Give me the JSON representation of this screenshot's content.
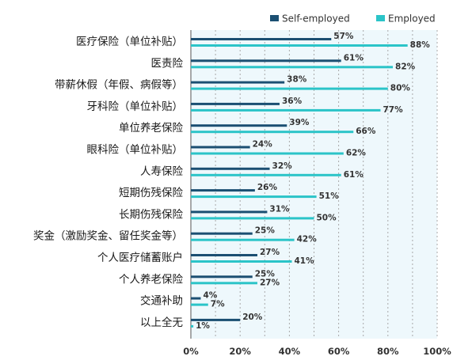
{
  "chart_data": {
    "type": "bar",
    "orientation": "horizontal",
    "categories": [
      "医疗保险（单位补贴）",
      "医责险",
      "带薪休假（年假、病假等）",
      "牙科险（单位补贴）",
      "单位养老保险",
      "眼科险（单位补贴）",
      "人寿保险",
      "短期伤残保险",
      "长期伤残保险",
      "奖金（激励奖金、留任奖金等）",
      "个人医疗储蓄账户",
      "个人养老保险",
      "交通补助",
      "以上全无"
    ],
    "series": [
      {
        "name": "Self-employed",
        "color": "#1b4f72",
        "values": [
          57,
          61,
          38,
          36,
          39,
          24,
          32,
          26,
          31,
          25,
          27,
          25,
          4,
          20
        ]
      },
      {
        "name": "Employed",
        "color": "#2bc4c8",
        "values": [
          88,
          82,
          80,
          77,
          66,
          62,
          61,
          51,
          50,
          42,
          41,
          27,
          7,
          1
        ]
      }
    ],
    "xlim": [
      0,
      100
    ],
    "x_ticks": [
      0,
      20,
      40,
      60,
      80,
      100
    ],
    "x_tick_labels": [
      "0%",
      "20%",
      "40%",
      "60%",
      "80%",
      "100%"
    ],
    "value_suffix": "%",
    "legend_position": "top-right",
    "grid": "vertical dashed",
    "plot_background": "#eef8fc"
  }
}
